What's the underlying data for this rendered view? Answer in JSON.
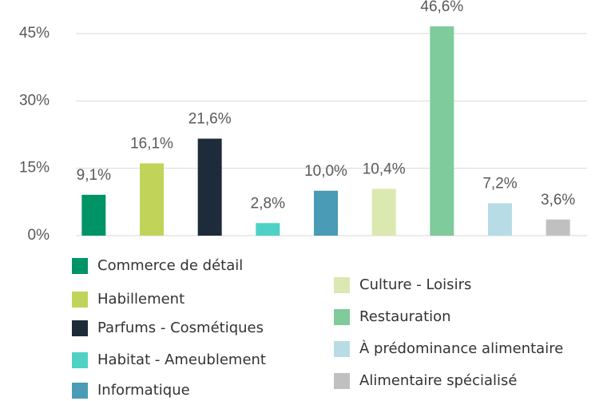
{
  "chart_data": {
    "type": "bar",
    "categories": [
      "Commerce de détail",
      "Habillement",
      "Parfums - Cosmétiques",
      "Habitat - Ameublement",
      "Informatique",
      "Culture - Loisirs",
      "Restauration",
      "À prédominance alimentaire",
      "Alimentaire spécialisé"
    ],
    "values": [
      9.1,
      16.1,
      21.6,
      2.8,
      10.0,
      10.4,
      46.6,
      7.2,
      3.6
    ],
    "value_labels": [
      "9,1%",
      "16,1%",
      "21,6%",
      "2,8%",
      "10,0%",
      "10,4%",
      "46,6%",
      "7,2%",
      "3,6%"
    ],
    "colors": [
      "#009366",
      "#c2d35a",
      "#1d2b3a",
      "#4fd1c5",
      "#4a9bb5",
      "#dbe8b0",
      "#7fcb9b",
      "#b7dce6",
      "#c0c0c0"
    ],
    "ylim": [
      0,
      45
    ],
    "yticks": [
      {
        "value": 0,
        "label": "0%"
      },
      {
        "value": 15,
        "label": "15%"
      },
      {
        "value": 30,
        "label": "30%"
      },
      {
        "value": 45,
        "label": "45%"
      }
    ],
    "grid": true
  }
}
